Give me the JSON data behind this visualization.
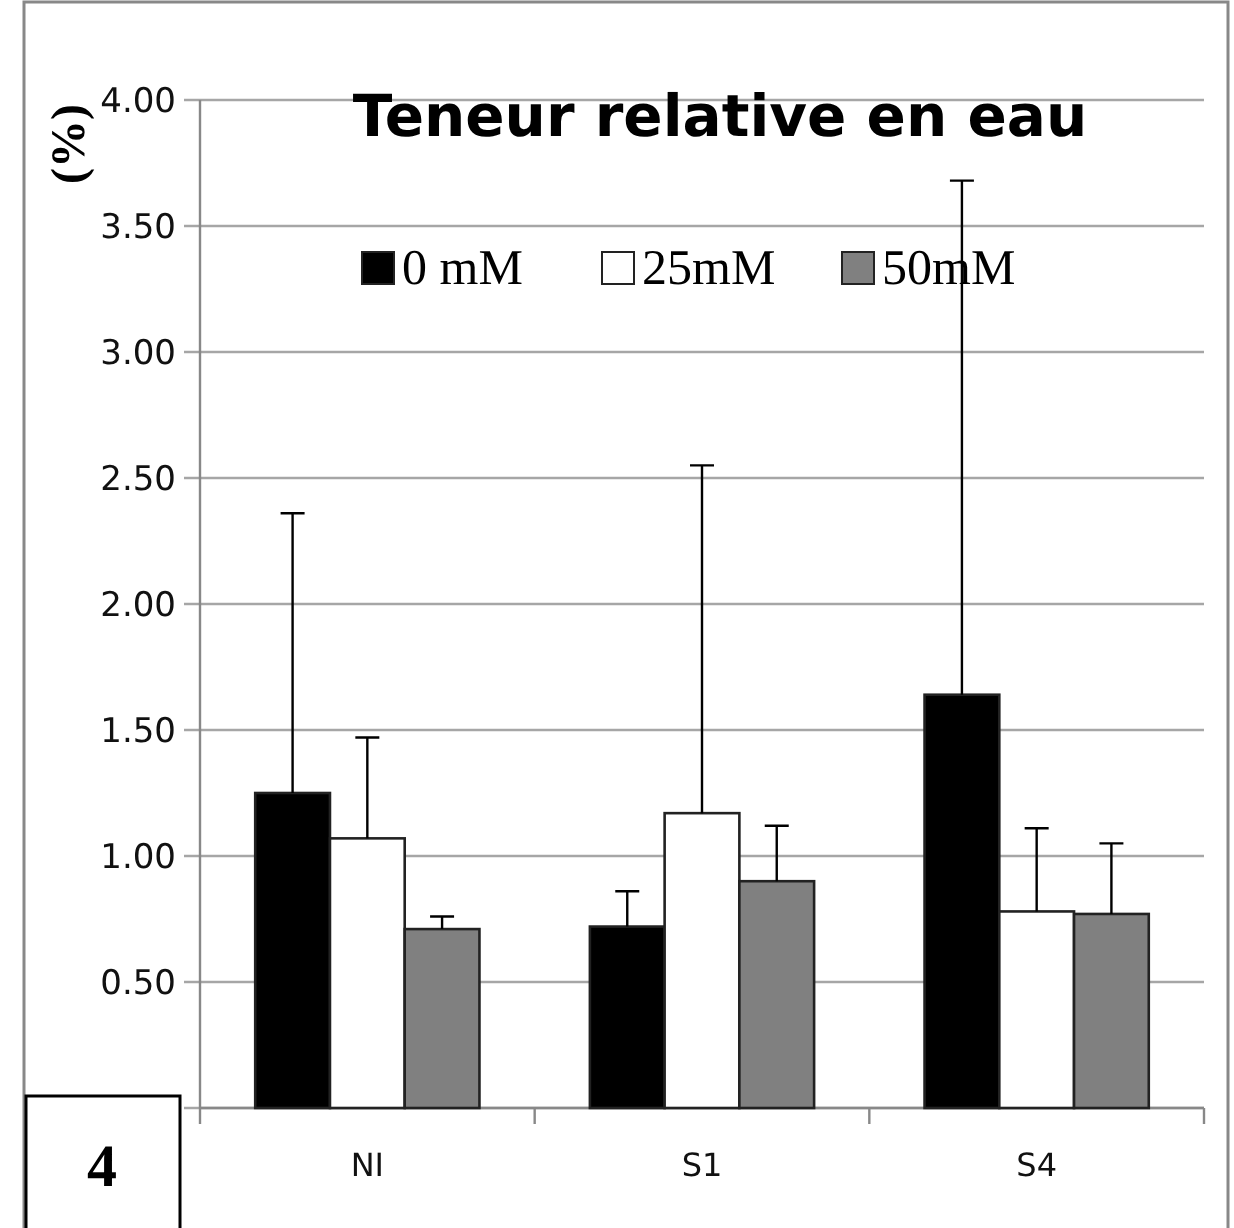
{
  "chart_data": {
    "type": "bar",
    "title": "Teneur relative en eau",
    "ylabel": "(%)",
    "categories": [
      "NI",
      "S1",
      "S4"
    ],
    "series": [
      {
        "name": "0 mM",
        "color": "#000000",
        "values": [
          1.25,
          0.72,
          1.64
        ],
        "errors": [
          [
            1.25,
            2.36
          ],
          [
            0.72,
            0.86
          ],
          [
            1.64,
            3.68
          ]
        ]
      },
      {
        "name": "25mM",
        "color": "#ffffff",
        "values": [
          1.07,
          1.17,
          0.78
        ],
        "errors": [
          [
            1.07,
            1.47
          ],
          [
            1.17,
            2.55
          ],
          [
            0.78,
            1.11
          ]
        ]
      },
      {
        "name": "50mM",
        "color": "#808080",
        "values": [
          0.71,
          0.9,
          0.77
        ],
        "errors": [
          [
            0.71,
            0.76
          ],
          [
            0.9,
            1.12
          ],
          [
            0.77,
            1.05
          ]
        ]
      }
    ],
    "ylim": [
      0,
      4
    ],
    "yticks": [
      {
        "value": 0,
        "label": null
      },
      {
        "value": 0.5,
        "label": "0.50"
      },
      {
        "value": 1,
        "label": "1.00"
      },
      {
        "value": 1.5,
        "label": "1.50"
      },
      {
        "value": 2,
        "label": "2.00"
      },
      {
        "value": 2.5,
        "label": "2.50"
      },
      {
        "value": 3,
        "label": "3.00"
      },
      {
        "value": 3.5,
        "label": "3.50"
      },
      {
        "value": 4,
        "label": "4.00"
      }
    ],
    "grid": "y",
    "legend": "top",
    "annotations": [
      "4"
    ]
  }
}
